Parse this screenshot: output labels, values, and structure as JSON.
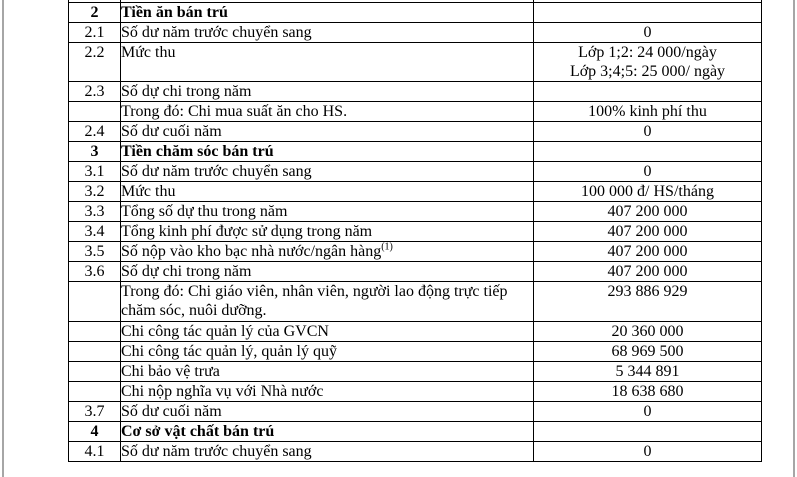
{
  "colors": {
    "table_border": "#000000",
    "page_edge": "#a6a6a6",
    "background": "#ffffff",
    "text": "#000000"
  },
  "table": {
    "columns": [
      "number",
      "description",
      "value"
    ],
    "rows": [
      {
        "no": "",
        "label": "",
        "value": "",
        "partial": true
      },
      {
        "no": "2",
        "label": "Tiền ăn bán trú",
        "value": "",
        "bold": true
      },
      {
        "no": "2.1",
        "label": "Số dư năm trước chuyển sang",
        "value": "0"
      },
      {
        "no": "2.2",
        "label": "Mức thu",
        "value_lines": [
          "Lớp 1;2: 24 000/ngày",
          "Lớp 3;4;5: 25 000/ ngày"
        ]
      },
      {
        "no": "2.3",
        "label": "Số dự chi trong năm",
        "value": ""
      },
      {
        "no": "",
        "label": "Trong đó: Chi mua suất ăn cho HS.",
        "value": "100% kinh phí thu"
      },
      {
        "no": "2.4",
        "label": "Số dư cuối năm",
        "value": "0"
      },
      {
        "no": "3",
        "label": "Tiền chăm sóc bán trú",
        "value": "",
        "bold": true
      },
      {
        "no": "3.1",
        "label": "Số dư năm trước chuyển sang",
        "value": "0"
      },
      {
        "no": "3.2",
        "label": "Mức thu",
        "value": "100 000 đ/ HS/tháng"
      },
      {
        "no": "3.3",
        "label": "Tổng số dự thu trong năm",
        "value": "407 200 000"
      },
      {
        "no": "3.4",
        "label": "Tổng kinh phí được sử dụng trong năm",
        "value": "407 200 000"
      },
      {
        "no": "3.5",
        "label": "Số nộp vào kho bạc nhà nước/ngân hàng",
        "label_sup": "(1)",
        "value": "407 200 000"
      },
      {
        "no": "3.6",
        "label": "Số dự chi trong năm",
        "value": "407 200 000"
      },
      {
        "no": "",
        "label": "Trong đó: Chi giáo viên, nhân viên, người lao động trực tiếp chăm sóc, nuôi dưỡng.",
        "value": "293 886 929"
      },
      {
        "no": "",
        "label": "Chi công tác quản lý của GVCN",
        "value": "20 360 000"
      },
      {
        "no": "",
        "label": "Chi công tác quản lý, quản lý quỹ",
        "value": "68 969 500"
      },
      {
        "no": "",
        "label": "Chi bảo vệ trưa",
        "value": "5 344 891"
      },
      {
        "no": "",
        "label": "Chi nộp nghĩa vụ với Nhà nước",
        "value": "18 638 680"
      },
      {
        "no": "3.7",
        "label": "Số dư cuối năm",
        "value": "0"
      },
      {
        "no": "4",
        "label": "Cơ sở vật chất bán trú",
        "value": "",
        "bold": true
      },
      {
        "no": "4.1",
        "label": "Số dư năm trước chuyển sang",
        "value": "0"
      }
    ]
  }
}
